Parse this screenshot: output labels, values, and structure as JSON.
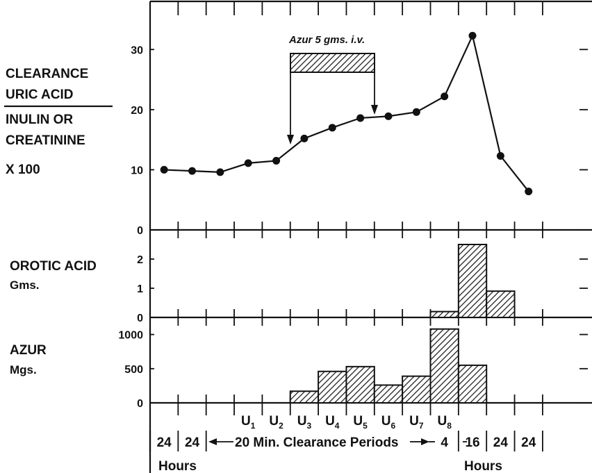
{
  "chart_data": [
    {
      "type": "line",
      "panel": "clearance",
      "ylabel_lines": [
        "CLEARANCE",
        "URIC ACID",
        "INULIN OR",
        "CREATININE",
        "X 100"
      ],
      "yticks": [
        "0",
        "10",
        "20",
        "30"
      ],
      "ylim": [
        0,
        38
      ],
      "points": [
        {
          "slot": 0,
          "y": 10.0
        },
        {
          "slot": 1,
          "y": 9.8
        },
        {
          "slot": 2,
          "y": 9.6
        },
        {
          "slot": 3,
          "y": 11.1
        },
        {
          "slot": 4,
          "y": 11.5
        },
        {
          "slot": 5,
          "y": 15.2
        },
        {
          "slot": 6,
          "y": 17.0
        },
        {
          "slot": 7,
          "y": 18.6
        },
        {
          "slot": 8,
          "y": 18.9
        },
        {
          "slot": 9,
          "y": 19.6
        },
        {
          "slot": 10,
          "y": 22.2
        },
        {
          "slot": 11,
          "y": 32.3
        },
        {
          "slot": 12,
          "y": 12.3
        },
        {
          "slot": 13,
          "y": 6.4
        }
      ],
      "annotation": {
        "text": "Azur 5 gms. i.v.",
        "from_slot": 5,
        "to_slot": 8
      }
    },
    {
      "type": "bar",
      "panel": "orotic-acid",
      "ylabel_lines": [
        "OROTIC ACID",
        "Gms."
      ],
      "yticks": [
        "0",
        "1",
        "2"
      ],
      "ylim": [
        0,
        3
      ],
      "bars": [
        {
          "slot": 10,
          "value": 0.2
        },
        {
          "slot": 11,
          "value": 2.5
        },
        {
          "slot": 12,
          "value": 0.9
        }
      ]
    },
    {
      "type": "bar",
      "panel": "azur",
      "ylabel_lines": [
        "AZUR",
        "Mgs."
      ],
      "yticks": [
        "0",
        "500",
        "1000"
      ],
      "ylim": [
        0,
        1250
      ],
      "bars": [
        {
          "slot": 5,
          "value": 170
        },
        {
          "slot": 6,
          "value": 460
        },
        {
          "slot": 7,
          "value": 530
        },
        {
          "slot": 8,
          "value": 260
        },
        {
          "slot": 9,
          "value": 390
        },
        {
          "slot": 10,
          "value": 1080
        },
        {
          "slot": 11,
          "value": 550
        }
      ]
    }
  ],
  "x_axis": {
    "period_labels": [
      {
        "slot": 0,
        "text": "24"
      },
      {
        "slot": 1,
        "text": "24"
      },
      {
        "slot": 3,
        "text": "U",
        "sub": "1"
      },
      {
        "slot": 4,
        "text": "U",
        "sub": "2"
      },
      {
        "slot": 5,
        "text": "U",
        "sub": "3"
      },
      {
        "slot": 6,
        "text": "U",
        "sub": "4"
      },
      {
        "slot": 7,
        "text": "U",
        "sub": "5"
      },
      {
        "slot": 8,
        "text": "U",
        "sub": "6"
      },
      {
        "slot": 9,
        "text": "U",
        "sub": "7"
      },
      {
        "slot": 10,
        "text": "U",
        "sub": "8"
      }
    ],
    "clearance_text": "20 Min. Clearance Periods",
    "tail_labels": [
      "4",
      "16",
      "24",
      "24"
    ],
    "hours_left": "Hours",
    "hours_right": "Hours"
  }
}
